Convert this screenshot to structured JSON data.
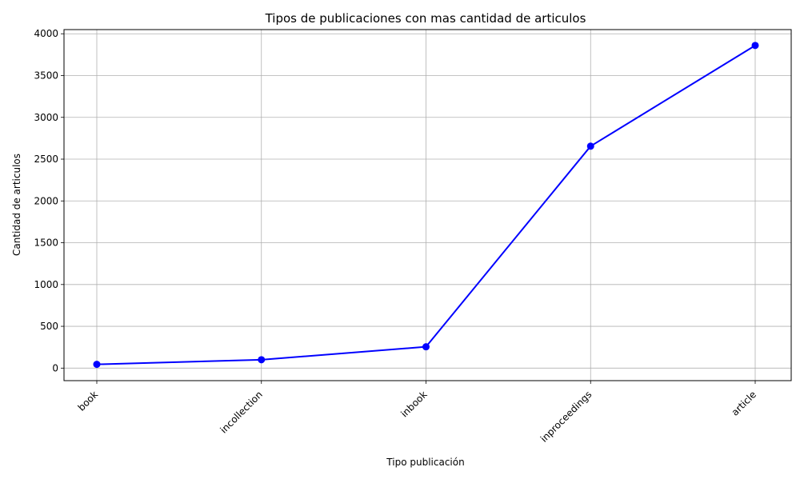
{
  "chart_data": {
    "type": "line",
    "title": "Tipos de publicaciones con mas cantidad de articulos",
    "xlabel": "Tipo publicación",
    "ylabel": "Cantidad de articulos",
    "categories": [
      "book",
      "incollection",
      "inbook",
      "inproceedings",
      "article"
    ],
    "series": [
      {
        "values": [
          45,
          100,
          255,
          2655,
          3860
        ],
        "color": "#0000ff",
        "marker": "circle"
      }
    ],
    "yticks": [
      0,
      500,
      1000,
      1500,
      2000,
      2500,
      3000,
      3500,
      4000
    ],
    "ylim": [
      -150,
      4050
    ],
    "grid": true,
    "x_tick_rotation": 45
  }
}
